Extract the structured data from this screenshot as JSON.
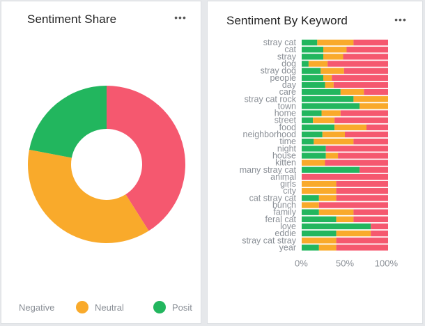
{
  "left_card": {
    "title": "Sentiment Share",
    "more_icon": "more-horizontal-icon",
    "more_glyph": "•••"
  },
  "right_card": {
    "title": "Sentiment By Keyword",
    "more_icon": "more-horizontal-icon",
    "more_glyph": "•••"
  },
  "legend": {
    "negative_label": "Negative",
    "neutral_label": "Neutral",
    "positive_label": "Posit"
  },
  "colors": {
    "negative": "#f5586f",
    "neutral": "#f9aa2b",
    "positive": "#22b65e",
    "axis_text": "#8a8f96"
  },
  "chart_data": [
    {
      "type": "pie",
      "title": "Sentiment Share",
      "labels": [
        "Negative",
        "Neutral",
        "Positive"
      ],
      "values": [
        41,
        37,
        22
      ],
      "donut": true
    },
    {
      "type": "bar",
      "title": "Sentiment By Keyword",
      "orientation": "horizontal",
      "stacked": true,
      "percent": true,
      "categories": [
        "stray cat",
        "cat",
        "stray",
        "dog",
        "stray dog",
        "people",
        "day",
        "care",
        "stray cat rock",
        "town",
        "home",
        "street",
        "food",
        "neighborhood",
        "time",
        "night",
        "house",
        "kitten",
        "many stray cat",
        "animal",
        "girls",
        "city",
        "cat stray cat",
        "bunch",
        "family",
        "feral cat",
        "love",
        "eddie",
        "stray cat stray",
        "year"
      ],
      "series": [
        {
          "name": "Positive",
          "values": [
            18,
            25,
            25,
            8,
            22,
            25,
            27,
            45,
            60,
            67,
            23,
            13,
            38,
            24,
            14,
            28,
            28,
            0,
            67,
            0,
            0,
            0,
            20,
            0,
            20,
            40,
            80,
            40,
            0,
            20
          ]
        },
        {
          "name": "Neutral",
          "values": [
            42,
            27,
            23,
            22,
            27,
            10,
            10,
            27,
            40,
            33,
            22,
            25,
            37,
            26,
            46,
            0,
            14,
            27,
            0,
            0,
            40,
            40,
            20,
            20,
            40,
            20,
            0,
            40,
            40,
            20
          ]
        },
        {
          "name": "Negative",
          "values": [
            40,
            48,
            52,
            70,
            51,
            65,
            63,
            28,
            0,
            0,
            55,
            62,
            25,
            50,
            40,
            72,
            58,
            73,
            33,
            100,
            60,
            60,
            60,
            80,
            40,
            40,
            20,
            20,
            60,
            60
          ]
        }
      ],
      "x_ticks": [
        "0%",
        "50%",
        "100%"
      ],
      "xlim": [
        0,
        100
      ]
    }
  ]
}
